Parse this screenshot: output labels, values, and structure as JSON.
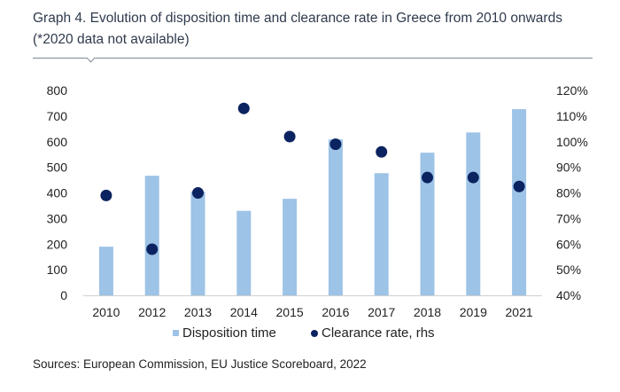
{
  "header": {
    "title": "Graph 4. Evolution of disposition time and clearance rate in Greece from 2010 onwards (*2020 data not available)"
  },
  "colors": {
    "bar": "#9DC3E6",
    "dot": "#0B2360",
    "axis": "#d0d0d0"
  },
  "chart_data": {
    "type": "bar",
    "title": "Graph 4. Evolution of disposition time and clearance rate in Greece from 2010 onwards (*2020 data not available)",
    "categories": [
      "2010",
      "2012",
      "2013",
      "2014",
      "2015",
      "2016",
      "2017",
      "2018",
      "2019",
      "2021"
    ],
    "series": [
      {
        "name": "Disposition time",
        "type": "bar",
        "axis": "left",
        "values": [
          190,
          467,
          405,
          330,
          377,
          609,
          477,
          557,
          636,
          727
        ]
      },
      {
        "name": "Clearance rate, rhs",
        "type": "scatter",
        "axis": "right",
        "values": [
          79,
          58,
          80,
          113,
          102,
          99,
          96,
          86,
          86,
          82.5
        ]
      }
    ],
    "left_axis": {
      "ylim": [
        0,
        800
      ],
      "ticks": [
        "0",
        "100",
        "200",
        "300",
        "400",
        "500",
        "600",
        "700",
        "800"
      ]
    },
    "right_axis": {
      "ylim": [
        40,
        120
      ],
      "ticks": [
        "40%",
        "50%",
        "60%",
        "70%",
        "80%",
        "90%",
        "100%",
        "110%",
        "120%"
      ]
    },
    "xlabel": "",
    "ylabel": "",
    "grid": false,
    "legend": {
      "placement": "bottom",
      "entries": [
        "Disposition time",
        "Clearance rate, rhs"
      ]
    }
  },
  "footer": {
    "source": "Sources: European Commission, EU Justice Scoreboard, 2022"
  }
}
